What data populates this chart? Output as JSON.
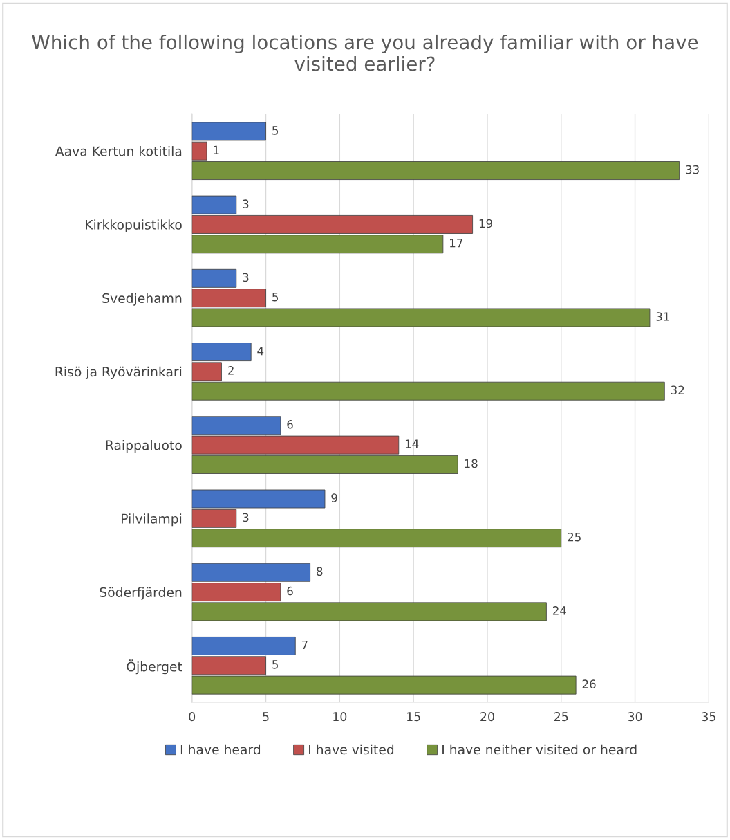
{
  "chart_data": {
    "type": "bar",
    "orientation": "horizontal",
    "title": "Which of the following locations are you already familiar with or have visited earlier?",
    "categories": [
      "Aava Kertun kotitila",
      "Kirkkopuistikko",
      "Svedjehamn",
      "Risö ja Ryövärinkari",
      "Raippaluoto",
      "Pilvilampi",
      "Söderfjärden",
      "Öjberget"
    ],
    "series": [
      {
        "name": "I have heard",
        "color": "#4472c4",
        "values": [
          5,
          3,
          3,
          4,
          6,
          9,
          8,
          7
        ]
      },
      {
        "name": "I have visited",
        "color": "#c0504d",
        "values": [
          1,
          19,
          5,
          2,
          14,
          3,
          6,
          5
        ]
      },
      {
        "name": "I have neither visited or heard",
        "color": "#77933c",
        "values": [
          33,
          17,
          31,
          32,
          18,
          25,
          24,
          26
        ]
      }
    ],
    "xlim": [
      0,
      35
    ],
    "xticks": [
      0,
      5,
      10,
      15,
      20,
      25,
      30,
      35
    ],
    "grid": "x",
    "legend": "bottom",
    "data_labels": true
  }
}
